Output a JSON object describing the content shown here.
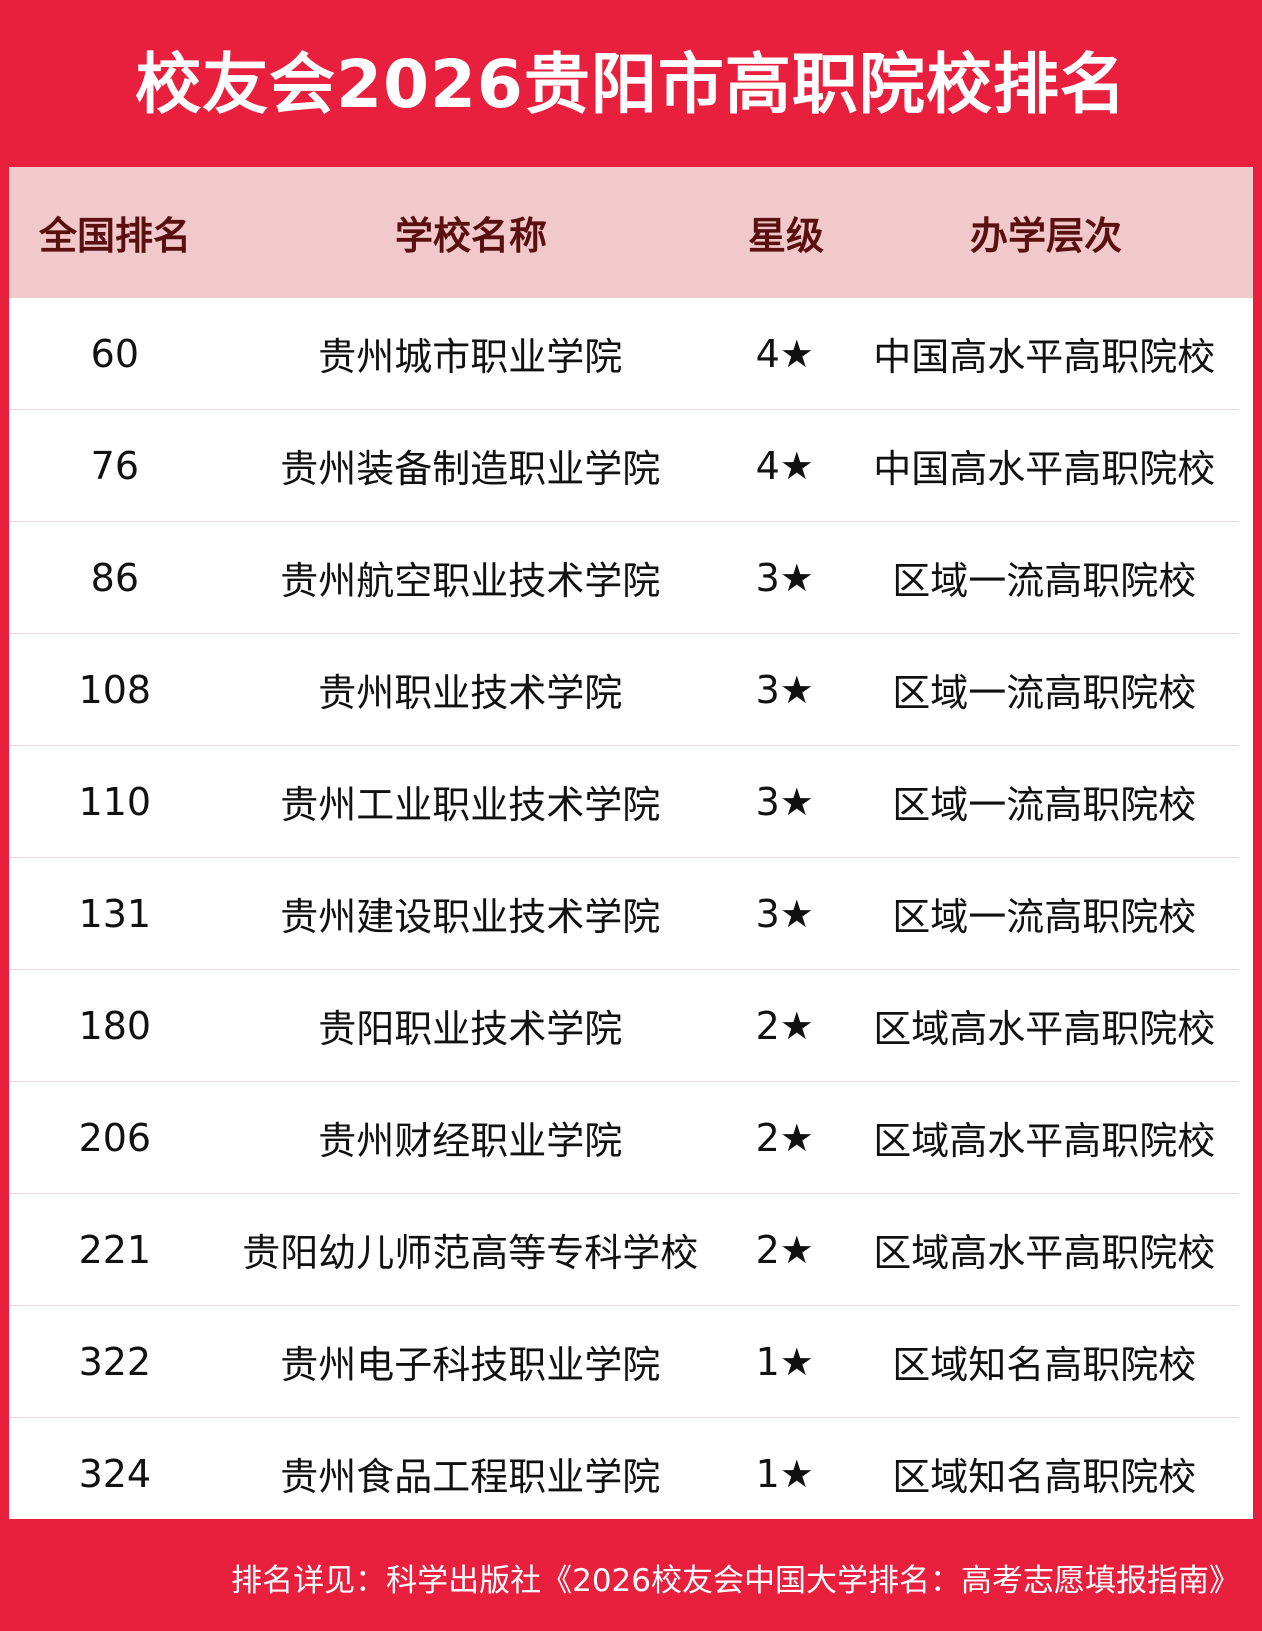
{
  "title": "校友会2026贵阳市高职院校排名",
  "headers": [
    "全国排名",
    "学校名称",
    "星级",
    "办学层次"
  ],
  "rows": [
    [
      "60",
      "贵州城市职业学院",
      "4★",
      "中国高水平高职院校"
    ],
    [
      "76",
      "贵州装备制造职业学院",
      "4★",
      "中国高水平高职院校"
    ],
    [
      "86",
      "贵州航空职业技术学院",
      "3★",
      "区域一流高职院校"
    ],
    [
      "108",
      "贵州职业技术学院",
      "3★",
      "区域一流高职院校"
    ],
    [
      "110",
      "贵州工业职业技术学院",
      "3★",
      "区域一流高职院校"
    ],
    [
      "131",
      "贵州建设职业技术学院",
      "3★",
      "区域一流高职院校"
    ],
    [
      "180",
      "贵阳职业技术学院",
      "2★",
      "区域高水平高职院校"
    ],
    [
      "206",
      "贵州财经职业学院",
      "2★",
      "区域高水平高职院校"
    ],
    [
      "221",
      "贵阳幼儿师范高等专科学校",
      "2★",
      "区域高水平高职院校"
    ],
    [
      "322",
      "贵州电子科技职业学院",
      "1★",
      "区域知名高职院校"
    ],
    [
      "324",
      "贵州食品工程职业学院",
      "1★",
      "区域知名高职院校"
    ]
  ],
  "footer": "排名详见：科学出版社《2026校友会中国大学排名：高考志愿填报指南》",
  "colors": {
    "brand_red": "#e8203e",
    "header_bg": "#f2c9ca"
  }
}
